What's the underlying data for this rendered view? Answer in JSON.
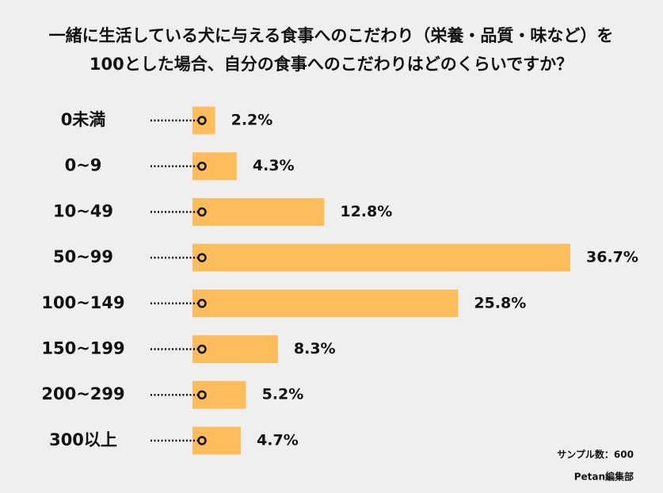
{
  "chart_data": {
    "type": "bar",
    "orientation": "horizontal",
    "title": [
      "一緒に生活している犬に与える食事へのこだわり（栄養・品質・味など）を",
      "100とした場合、自分の食事へのこだわりはどのくらいですか？"
    ],
    "categories": [
      "0未満",
      "0~9",
      "10~49",
      "50~99",
      "100~149",
      "150~199",
      "200~299",
      "300以上"
    ],
    "values": [
      2.2,
      4.3,
      12.8,
      36.7,
      25.8,
      8.3,
      5.2,
      4.7
    ],
    "value_labels": [
      "2.2%",
      "4.3%",
      "12.8%",
      "36.7%",
      "25.8%",
      "8.3%",
      "5.2%",
      "4.7%"
    ],
    "color": "#fdbd5c",
    "sample_note": "サンプル数：600",
    "source": "Petan編集部"
  }
}
